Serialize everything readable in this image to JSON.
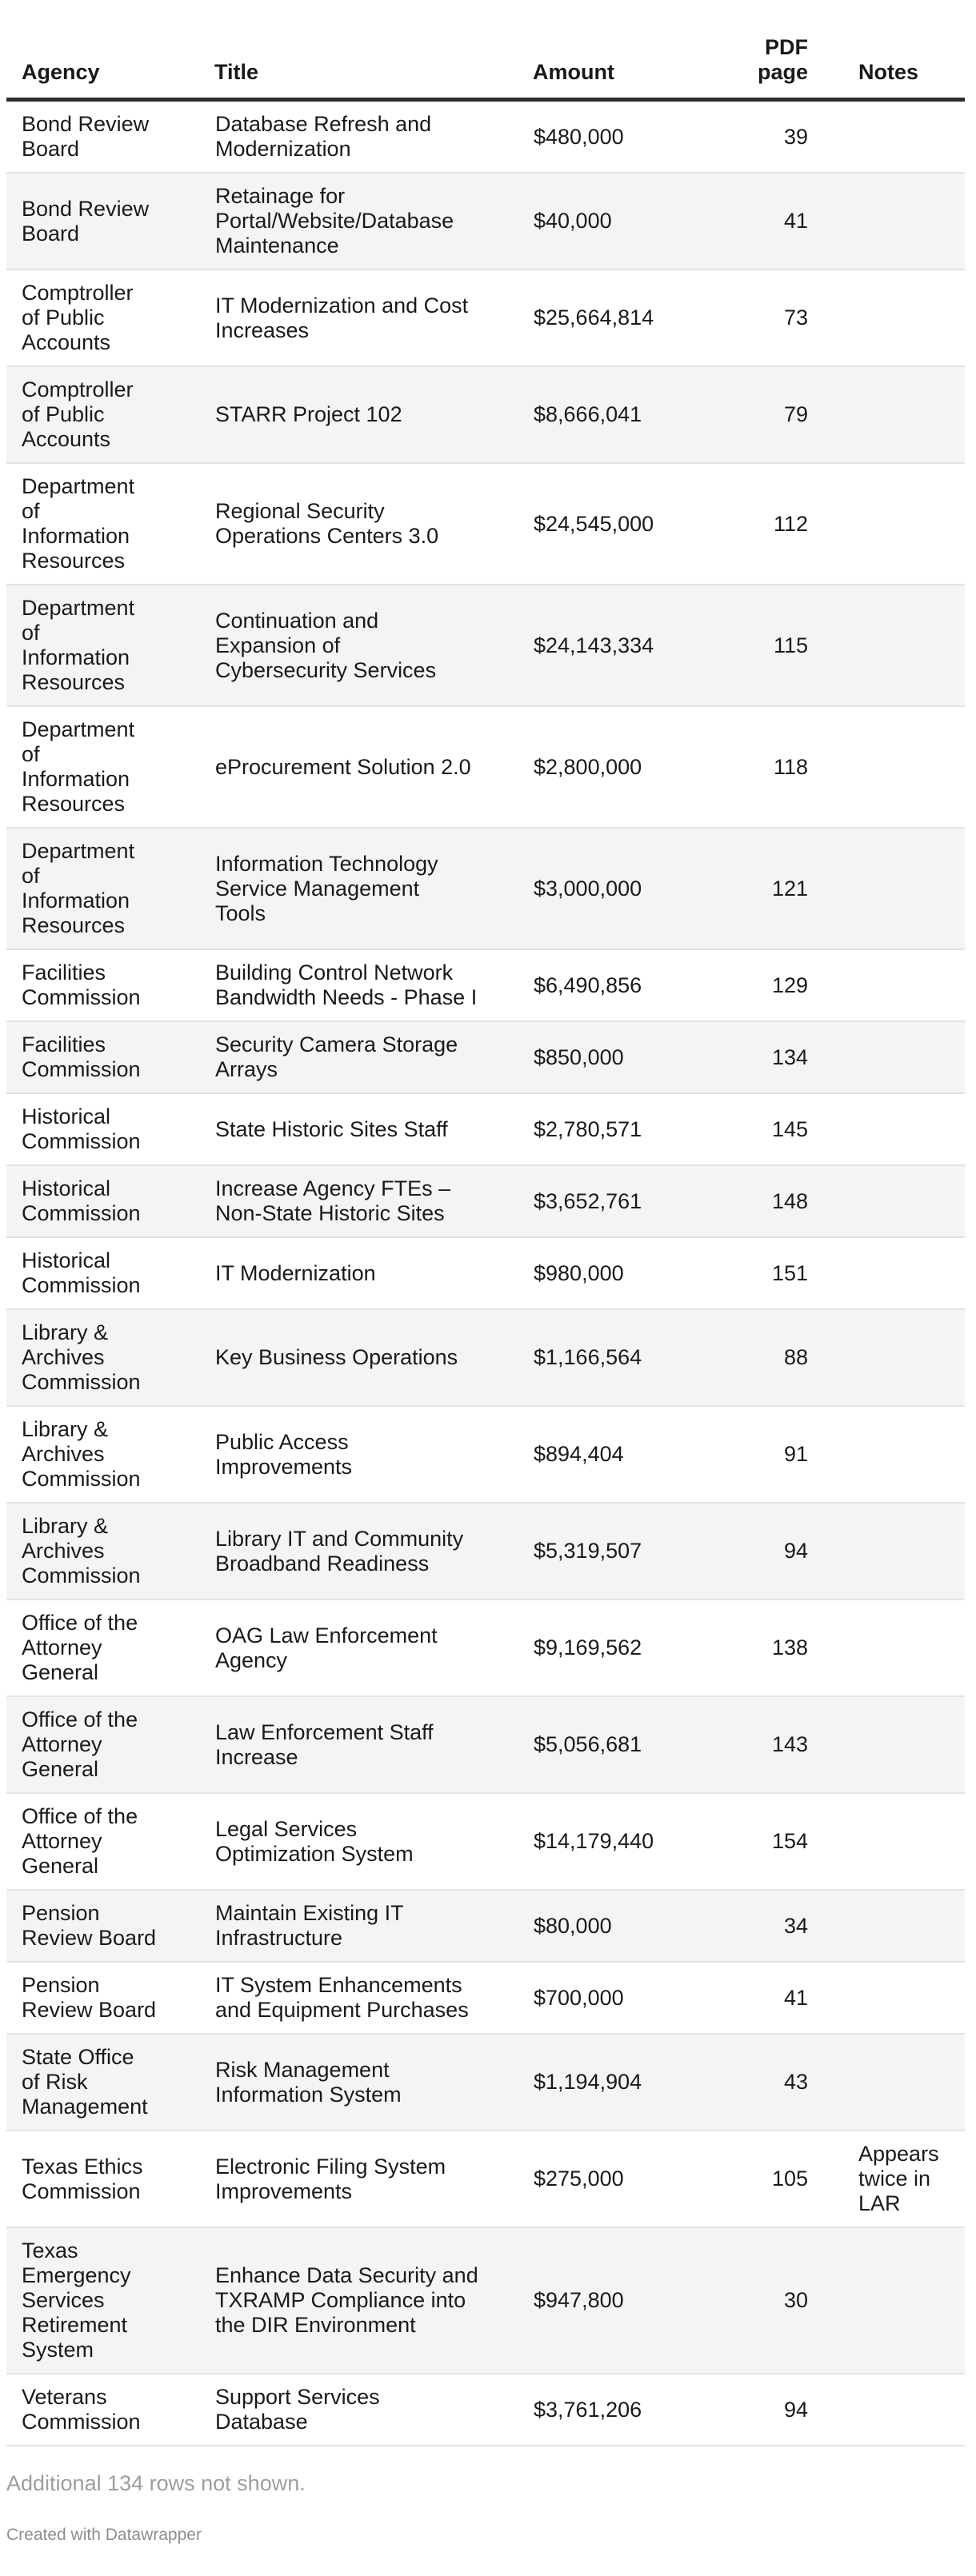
{
  "colors": {
    "stripe": "#f4f4f4",
    "row_border": "#e4e4e4",
    "header_border": "#2e2e2e",
    "text": "#1a1a1a",
    "muted_note": "#9e9e9e",
    "credit": "#8e8e8e"
  },
  "chart_data": {
    "type": "table",
    "columns": [
      "Agency",
      "Title",
      "Amount",
      "PDF page",
      "Notes"
    ],
    "header_labels": {
      "agency": "Agency",
      "title": "Title",
      "amount": "Amount",
      "pdf_page": "PDF\npage",
      "notes": "Notes"
    },
    "rows": [
      {
        "agency": "Bond Review\nBoard",
        "title": "Database Refresh and\nModernization",
        "amount": "$480,000",
        "pdf_page": "39",
        "notes": ""
      },
      {
        "agency": "Bond Review\nBoard",
        "title": "Retainage for\nPortal/Website/Database\nMaintenance",
        "amount": "$40,000",
        "pdf_page": "41",
        "notes": ""
      },
      {
        "agency": "Comptroller\nof Public\nAccounts",
        "title": "IT Modernization and Cost\nIncreases",
        "amount": "$25,664,814",
        "pdf_page": "73",
        "notes": ""
      },
      {
        "agency": "Comptroller\nof Public\nAccounts",
        "title": "STARR Project 102",
        "amount": "$8,666,041",
        "pdf_page": "79",
        "notes": ""
      },
      {
        "agency": "Department\nof\nInformation\nResources",
        "title": "Regional Security\nOperations Centers 3.0",
        "amount": "$24,545,000",
        "pdf_page": "112",
        "notes": ""
      },
      {
        "agency": "Department\nof\nInformation\nResources",
        "title": "Continuation and\nExpansion of\nCybersecurity Services",
        "amount": "$24,143,334",
        "pdf_page": "115",
        "notes": ""
      },
      {
        "agency": "Department\nof\nInformation\nResources",
        "title": "eProcurement Solution 2.0",
        "amount": "$2,800,000",
        "pdf_page": "118",
        "notes": ""
      },
      {
        "agency": "Department\nof\nInformation\nResources",
        "title": "Information Technology\nService Management\nTools",
        "amount": "$3,000,000",
        "pdf_page": "121",
        "notes": ""
      },
      {
        "agency": "Facilities\nCommission",
        "title": "Building Control Network\nBandwidth Needs - Phase I",
        "amount": "$6,490,856",
        "pdf_page": "129",
        "notes": ""
      },
      {
        "agency": "Facilities\nCommission",
        "title": "Security Camera Storage\nArrays",
        "amount": "$850,000",
        "pdf_page": "134",
        "notes": ""
      },
      {
        "agency": "Historical\nCommission",
        "title": "State Historic Sites Staff",
        "amount": "$2,780,571",
        "pdf_page": "145",
        "notes": ""
      },
      {
        "agency": "Historical\nCommission",
        "title": "Increase Agency FTEs –\nNon-State Historic Sites",
        "amount": "$3,652,761",
        "pdf_page": "148",
        "notes": ""
      },
      {
        "agency": "Historical\nCommission",
        "title": "IT Modernization",
        "amount": "$980,000",
        "pdf_page": "151",
        "notes": ""
      },
      {
        "agency": "Library &\nArchives\nCommission",
        "title": "Key Business Operations",
        "amount": "$1,166,564",
        "pdf_page": "88",
        "notes": ""
      },
      {
        "agency": "Library &\nArchives\nCommission",
        "title": "Public Access\nImprovements",
        "amount": "$894,404",
        "pdf_page": "91",
        "notes": ""
      },
      {
        "agency": "Library &\nArchives\nCommission",
        "title": "Library IT and Community\nBroadband Readiness",
        "amount": "$5,319,507",
        "pdf_page": "94",
        "notes": ""
      },
      {
        "agency": "Office of the\nAttorney\nGeneral",
        "title": "OAG Law Enforcement\nAgency",
        "amount": "$9,169,562",
        "pdf_page": "138",
        "notes": ""
      },
      {
        "agency": "Office of the\nAttorney\nGeneral",
        "title": "Law Enforcement Staff\nIncrease",
        "amount": "$5,056,681",
        "pdf_page": "143",
        "notes": ""
      },
      {
        "agency": "Office of the\nAttorney\nGeneral",
        "title": "Legal Services\nOptimization System",
        "amount": "$14,179,440",
        "pdf_page": "154",
        "notes": ""
      },
      {
        "agency": "Pension\nReview Board",
        "title": "Maintain Existing IT\nInfrastructure",
        "amount": "$80,000",
        "pdf_page": "34",
        "notes": ""
      },
      {
        "agency": "Pension\nReview Board",
        "title": "IT System Enhancements\nand Equipment Purchases",
        "amount": "$700,000",
        "pdf_page": "41",
        "notes": ""
      },
      {
        "agency": "State Office\nof Risk\nManagement",
        "title": "Risk Management\nInformation System",
        "amount": "$1,194,904",
        "pdf_page": "43",
        "notes": ""
      },
      {
        "agency": "Texas Ethics\nCommission",
        "title": "Electronic Filing System\nImprovements",
        "amount": "$275,000",
        "pdf_page": "105",
        "notes": "Appears\ntwice in\nLAR"
      },
      {
        "agency": "Texas\nEmergency\nServices\nRetirement\nSystem",
        "title": "Enhance Data Security and\nTXRAMP Compliance into\nthe DIR Environment",
        "amount": "$947,800",
        "pdf_page": "30",
        "notes": ""
      },
      {
        "agency": "Veterans\nCommission",
        "title": "Support Services\nDatabase",
        "amount": "$3,761,206",
        "pdf_page": "94",
        "notes": ""
      }
    ],
    "footnote": "Additional 134 rows not shown.",
    "credit": "Created with Datawrapper"
  }
}
